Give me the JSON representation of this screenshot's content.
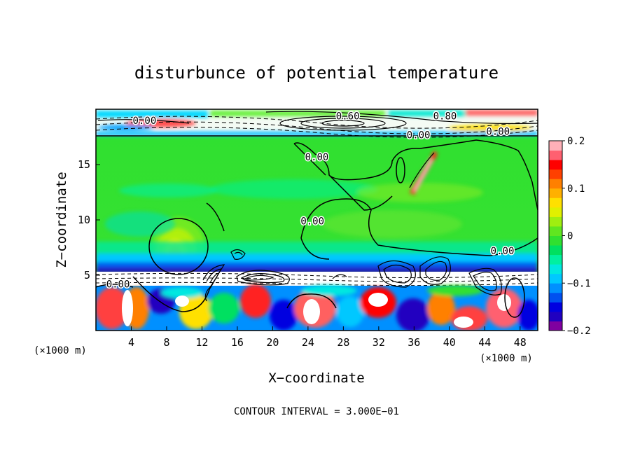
{
  "chart_data": {
    "type": "heatmap",
    "title": "disturbunce of potential temperature",
    "xlabel": "X−coordinate",
    "ylabel": "Z−coordinate",
    "x_unit_left": "(×1000 m)",
    "x_unit_right": "(×1000 m)",
    "xlim": [
      0,
      50
    ],
    "ylim": [
      0,
      20
    ],
    "xticks": [
      "4",
      "8",
      "12",
      "16",
      "20",
      "24",
      "28",
      "32",
      "36",
      "40",
      "44",
      "48"
    ],
    "xtick_values": [
      4,
      8,
      12,
      16,
      20,
      24,
      28,
      32,
      36,
      40,
      44,
      48
    ],
    "yticks": [
      "5",
      "10",
      "15"
    ],
    "ytick_values": [
      5,
      10,
      15
    ],
    "colorbar": {
      "ticks": [
        "0.2",
        "0.1",
        "0",
        "−0.1",
        "−0.2"
      ],
      "tick_values": [
        0.2,
        0.1,
        0,
        -0.1,
        -0.2
      ],
      "range": [
        -0.2,
        0.2
      ],
      "colors": [
        "#8000a0",
        "#2000c0",
        "#0000e0",
        "#0050f0",
        "#0090ff",
        "#00c8ff",
        "#00e8e0",
        "#00f0a0",
        "#00e060",
        "#30e030",
        "#60e620",
        "#a0ee10",
        "#e0f000",
        "#ffe000",
        "#ffb000",
        "#ff8000",
        "#ff4000",
        "#ff0000",
        "#ff6070",
        "#ffb0b8"
      ]
    },
    "contour_labels": [
      {
        "text": "0.00",
        "x": 5.5,
        "y": 19.0
      },
      {
        "text": "0.60",
        "x": 28.5,
        "y": 19.4
      },
      {
        "text": "0.80",
        "x": 39.5,
        "y": 19.4
      },
      {
        "text": "0.00",
        "x": 36.5,
        "y": 17.7
      },
      {
        "text": "0.00",
        "x": 45.5,
        "y": 18.0
      },
      {
        "text": "0.00",
        "x": 25.0,
        "y": 15.7
      },
      {
        "text": "0.00",
        "x": 24.5,
        "y": 9.9
      },
      {
        "text": "0.00",
        "x": 46.0,
        "y": 7.2
      },
      {
        "text": "0.00",
        "x": 2.5,
        "y": 4.2
      }
    ],
    "footer": "CONTOUR INTERVAL = 3.000E−01"
  }
}
